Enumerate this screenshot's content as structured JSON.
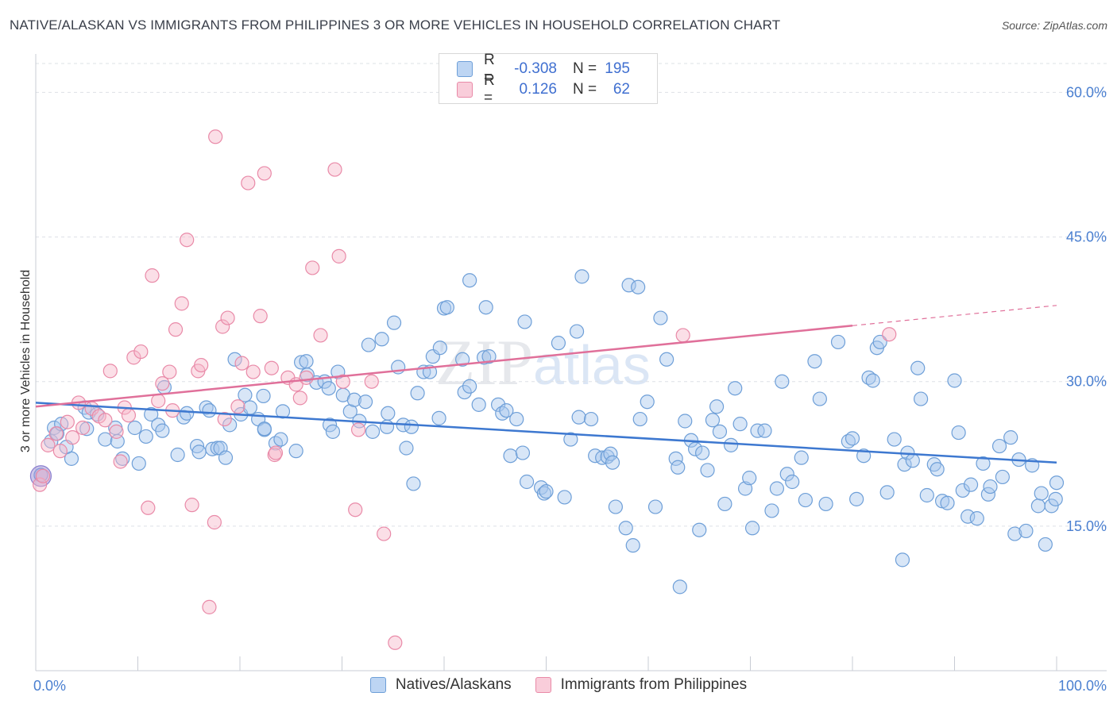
{
  "title": "NATIVE/ALASKAN VS IMMIGRANTS FROM PHILIPPINES 3 OR MORE VEHICLES IN HOUSEHOLD CORRELATION CHART",
  "source": "Source: ZipAtlas.com",
  "watermark": {
    "zip": "ZIP",
    "atlas": "atlas"
  },
  "legend_top": [
    {
      "r_label": "R =",
      "r": "-0.308",
      "n_label": "N =",
      "n": "195"
    },
    {
      "r_label": "R =",
      "r": "0.126",
      "n_label": "N =",
      "n": "62"
    }
  ],
  "colors": {
    "blue_fill": "#a9c8ee",
    "blue_stroke": "#6e9fd8",
    "blue_line": "#3d78d0",
    "pink_fill": "#f6b8ca",
    "pink_stroke": "#e98aa8",
    "pink_line": "#e0709a",
    "grid": "#dde0e6",
    "tick_text": "#4a7fd0"
  },
  "chart_data": {
    "type": "scatter",
    "title": "NATIVE/ALASKAN VS IMMIGRANTS FROM PHILIPPINES 3 OR MORE VEHICLES IN HOUSEHOLD CORRELATION CHART",
    "xlabel": "",
    "ylabel": "3 or more Vehicles in Household",
    "xlim": [
      0,
      100
    ],
    "ylim": [
      0,
      63
    ],
    "x_tick_labels": [
      {
        "value": 0,
        "label": "0.0%"
      },
      {
        "value": 100,
        "label": "100.0%"
      }
    ],
    "y_ticks": [
      {
        "value": 15,
        "label": "15.0%"
      },
      {
        "value": 30,
        "label": "30.0%"
      },
      {
        "value": 45,
        "label": "45.0%"
      },
      {
        "value": 60,
        "label": "60.0%"
      }
    ],
    "grid": true,
    "legend": "top-center",
    "series": [
      {
        "name": "Natives/Alaskans",
        "color": "#6e9fd8",
        "trend": {
          "x0": 0,
          "y0": 27.8,
          "x1": 100,
          "y1": 21.6
        },
        "points": [
          [
            0.5,
            20.3
          ],
          [
            1.5,
            23.8
          ],
          [
            1.8,
            25.2
          ],
          [
            2.1,
            24.6
          ],
          [
            2.5,
            25.6
          ],
          [
            3.0,
            23.2
          ],
          [
            3.5,
            22.0
          ],
          [
            4.8,
            27.3
          ],
          [
            5.2,
            26.8
          ],
          [
            5.0,
            25.1
          ],
          [
            6.0,
            26.6
          ],
          [
            6.8,
            24.0
          ],
          [
            7.8,
            25.2
          ],
          [
            8.0,
            23.8
          ],
          [
            8.5,
            22.0
          ],
          [
            9.7,
            25.2
          ],
          [
            10.1,
            21.5
          ],
          [
            10.8,
            24.3
          ],
          [
            11.3,
            26.6
          ],
          [
            12.0,
            25.5
          ],
          [
            12.4,
            24.9
          ],
          [
            12.6,
            29.4
          ],
          [
            13.9,
            22.4
          ],
          [
            14.5,
            26.3
          ],
          [
            14.8,
            26.7
          ],
          [
            15.8,
            23.3
          ],
          [
            16.0,
            22.7
          ],
          [
            16.7,
            27.3
          ],
          [
            17.0,
            27.0
          ],
          [
            17.3,
            23.0
          ],
          [
            17.8,
            23.1
          ],
          [
            18.1,
            23.1
          ],
          [
            18.6,
            22.1
          ],
          [
            19.0,
            25.5
          ],
          [
            19.5,
            32.3
          ],
          [
            20.1,
            26.6
          ],
          [
            20.5,
            28.6
          ],
          [
            21.0,
            27.3
          ],
          [
            21.8,
            26.1
          ],
          [
            22.3,
            28.5
          ],
          [
            22.4,
            25.0
          ],
          [
            23.5,
            23.6
          ],
          [
            24.0,
            24.0
          ],
          [
            24.2,
            26.9
          ],
          [
            25.5,
            22.8
          ],
          [
            26.0,
            32.0
          ],
          [
            26.5,
            32.1
          ],
          [
            26.6,
            30.7
          ],
          [
            27.5,
            29.9
          ],
          [
            28.3,
            30.0
          ],
          [
            28.7,
            29.3
          ],
          [
            28.8,
            25.5
          ],
          [
            29.1,
            24.8
          ],
          [
            29.6,
            31.0
          ],
          [
            30.1,
            28.6
          ],
          [
            30.8,
            26.9
          ],
          [
            31.2,
            28.1
          ],
          [
            31.7,
            25.9
          ],
          [
            32.3,
            27.9
          ],
          [
            32.6,
            33.8
          ],
          [
            33.0,
            24.8
          ],
          [
            33.9,
            34.4
          ],
          [
            34.4,
            25.3
          ],
          [
            35.1,
            36.1
          ],
          [
            35.5,
            31.5
          ],
          [
            36.0,
            25.5
          ],
          [
            36.8,
            25.3
          ],
          [
            36.3,
            23.1
          ],
          [
            37.0,
            19.4
          ],
          [
            37.4,
            28.8
          ],
          [
            38.0,
            31.0
          ],
          [
            38.6,
            31.0
          ],
          [
            38.9,
            32.6
          ],
          [
            39.5,
            26.2
          ],
          [
            39.6,
            33.5
          ],
          [
            40.0,
            37.6
          ],
          [
            40.3,
            37.7
          ],
          [
            41.8,
            32.3
          ],
          [
            42.0,
            28.9
          ],
          [
            42.5,
            29.5
          ],
          [
            42.5,
            40.5
          ],
          [
            43.4,
            27.6
          ],
          [
            43.9,
            32.5
          ],
          [
            44.1,
            37.7
          ],
          [
            44.4,
            32.6
          ],
          [
            45.3,
            27.6
          ],
          [
            45.7,
            26.7
          ],
          [
            46.1,
            27.0
          ],
          [
            47.1,
            26.1
          ],
          [
            46.5,
            22.3
          ],
          [
            47.7,
            22.6
          ],
          [
            47.9,
            36.2
          ],
          [
            48.1,
            19.6
          ],
          [
            49.5,
            19.0
          ],
          [
            49.8,
            18.4
          ],
          [
            50.0,
            18.6
          ],
          [
            51.2,
            34.0
          ],
          [
            51.8,
            18.0
          ],
          [
            52.4,
            24.0
          ],
          [
            53.0,
            35.2
          ],
          [
            53.2,
            26.3
          ],
          [
            53.5,
            40.9
          ],
          [
            54.4,
            26.1
          ],
          [
            54.8,
            22.3
          ],
          [
            55.5,
            22.1
          ],
          [
            56.0,
            22.2
          ],
          [
            56.3,
            22.5
          ],
          [
            56.5,
            21.6
          ],
          [
            56.8,
            17.0
          ],
          [
            57.8,
            14.8
          ],
          [
            58.1,
            40.0
          ],
          [
            58.5,
            13.0
          ],
          [
            59.0,
            39.8
          ],
          [
            59.2,
            26.1
          ],
          [
            59.9,
            27.9
          ],
          [
            60.7,
            17.0
          ],
          [
            61.2,
            36.6
          ],
          [
            61.8,
            32.3
          ],
          [
            62.7,
            22.0
          ],
          [
            62.9,
            21.1
          ],
          [
            63.1,
            8.7
          ],
          [
            63.6,
            25.9
          ],
          [
            64.2,
            23.9
          ],
          [
            64.6,
            23.0
          ],
          [
            65.0,
            14.6
          ],
          [
            65.3,
            22.6
          ],
          [
            65.8,
            20.8
          ],
          [
            66.3,
            26.0
          ],
          [
            66.7,
            27.4
          ],
          [
            67.0,
            24.8
          ],
          [
            67.5,
            17.3
          ],
          [
            68.1,
            23.4
          ],
          [
            68.5,
            29.3
          ],
          [
            69.0,
            25.6
          ],
          [
            69.5,
            18.9
          ],
          [
            69.9,
            20.0
          ],
          [
            70.2,
            14.8
          ],
          [
            70.7,
            24.9
          ],
          [
            71.4,
            24.9
          ],
          [
            72.1,
            16.6
          ],
          [
            72.6,
            18.9
          ],
          [
            73.1,
            30.0
          ],
          [
            73.6,
            20.4
          ],
          [
            74.1,
            19.6
          ],
          [
            75.0,
            22.1
          ],
          [
            75.4,
            17.7
          ],
          [
            76.3,
            32.1
          ],
          [
            76.8,
            28.2
          ],
          [
            77.4,
            17.3
          ],
          [
            78.6,
            34.1
          ],
          [
            79.6,
            23.8
          ],
          [
            80.0,
            24.1
          ],
          [
            80.4,
            17.8
          ],
          [
            81.1,
            22.3
          ],
          [
            81.6,
            30.4
          ],
          [
            82.0,
            30.1
          ],
          [
            82.4,
            33.5
          ],
          [
            82.7,
            34.1
          ],
          [
            83.4,
            18.5
          ],
          [
            84.1,
            24.0
          ],
          [
            84.9,
            11.5
          ],
          [
            85.1,
            21.4
          ],
          [
            85.4,
            22.6
          ],
          [
            85.9,
            21.8
          ],
          [
            86.4,
            31.4
          ],
          [
            86.7,
            28.2
          ],
          [
            87.3,
            18.2
          ],
          [
            88.0,
            21.4
          ],
          [
            88.3,
            20.9
          ],
          [
            88.8,
            17.6
          ],
          [
            89.3,
            17.4
          ],
          [
            90.0,
            30.1
          ],
          [
            90.4,
            24.7
          ],
          [
            90.8,
            18.7
          ],
          [
            91.3,
            16.0
          ],
          [
            91.6,
            19.3
          ],
          [
            92.2,
            15.8
          ],
          [
            92.8,
            21.5
          ],
          [
            93.3,
            18.3
          ],
          [
            93.5,
            19.1
          ],
          [
            94.4,
            23.3
          ],
          [
            94.7,
            20.1
          ],
          [
            95.5,
            24.2
          ],
          [
            95.9,
            14.2
          ],
          [
            96.3,
            21.9
          ],
          [
            97.0,
            14.5
          ],
          [
            97.6,
            21.3
          ],
          [
            98.2,
            17.1
          ],
          [
            98.5,
            18.4
          ],
          [
            98.9,
            13.1
          ],
          [
            99.5,
            17.1
          ],
          [
            99.9,
            17.8
          ],
          [
            100.0,
            19.5
          ],
          [
            22.4,
            25.1
          ],
          [
            34.5,
            26.7
          ]
        ]
      },
      {
        "name": "Immigrants from Philippines",
        "color": "#e98aa8",
        "trend": {
          "x0": 0,
          "y0": 27.4,
          "x1": 80,
          "y1": 35.8,
          "dashed_to": {
            "x": 100,
            "y": 37.9
          }
        },
        "points": [
          [
            0.4,
            19.3
          ],
          [
            0.7,
            20.2
          ],
          [
            1.2,
            23.4
          ],
          [
            2.0,
            24.6
          ],
          [
            2.4,
            22.8
          ],
          [
            3.1,
            25.8
          ],
          [
            3.6,
            24.2
          ],
          [
            4.2,
            27.8
          ],
          [
            4.6,
            25.2
          ],
          [
            5.5,
            27.2
          ],
          [
            6.2,
            26.4
          ],
          [
            6.8,
            26.0
          ],
          [
            7.3,
            31.1
          ],
          [
            7.9,
            24.8
          ],
          [
            8.3,
            21.7
          ],
          [
            8.7,
            27.3
          ],
          [
            9.1,
            26.5
          ],
          [
            9.6,
            32.5
          ],
          [
            10.3,
            33.1
          ],
          [
            11.0,
            16.9
          ],
          [
            11.4,
            41.0
          ],
          [
            12.0,
            28.0
          ],
          [
            12.4,
            29.8
          ],
          [
            13.1,
            31.0
          ],
          [
            13.4,
            27.0
          ],
          [
            13.7,
            35.4
          ],
          [
            14.3,
            38.1
          ],
          [
            14.8,
            44.7
          ],
          [
            15.3,
            17.2
          ],
          [
            15.9,
            31.1
          ],
          [
            16.2,
            31.7
          ],
          [
            17.0,
            6.6
          ],
          [
            17.5,
            15.4
          ],
          [
            17.6,
            55.4
          ],
          [
            18.3,
            35.7
          ],
          [
            18.8,
            36.6
          ],
          [
            18.5,
            26.1
          ],
          [
            19.8,
            27.4
          ],
          [
            20.2,
            31.9
          ],
          [
            20.8,
            50.6
          ],
          [
            21.3,
            31.0
          ],
          [
            22.0,
            36.8
          ],
          [
            22.4,
            51.6
          ],
          [
            23.1,
            31.4
          ],
          [
            23.4,
            22.4
          ],
          [
            23.5,
            22.6
          ],
          [
            24.7,
            30.4
          ],
          [
            25.5,
            29.7
          ],
          [
            25.9,
            28.3
          ],
          [
            26.5,
            30.4
          ],
          [
            27.1,
            41.8
          ],
          [
            27.9,
            34.8
          ],
          [
            29.3,
            52.0
          ],
          [
            29.7,
            43.0
          ],
          [
            30.1,
            30.0
          ],
          [
            31.3,
            16.7
          ],
          [
            31.6,
            25.0
          ],
          [
            32.9,
            30.0
          ],
          [
            34.1,
            14.2
          ],
          [
            35.2,
            2.9
          ],
          [
            83.6,
            34.9
          ],
          [
            63.4,
            34.8
          ]
        ]
      }
    ]
  }
}
